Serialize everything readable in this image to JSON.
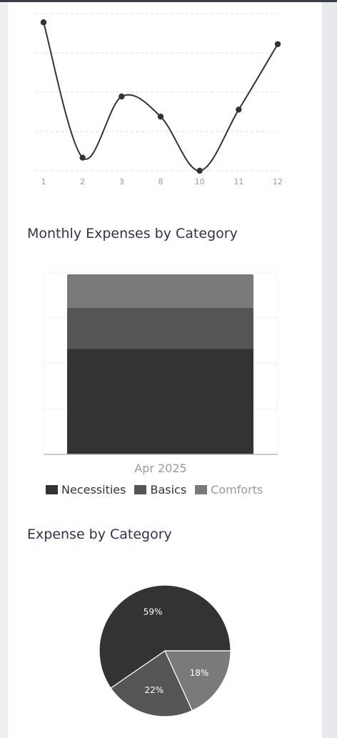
{
  "colors": {
    "necessities": "#333333",
    "basics": "#555555",
    "comforts": "#7a7a7a",
    "line": "#333333",
    "text_dark": "#333333",
    "text_muted": "#999999"
  },
  "sections": {
    "monthly_title": "Monthly Expenses by Category",
    "category_title": "Expense by Category"
  },
  "chart_data": [
    {
      "type": "line",
      "categories": [
        "1",
        "2",
        "3",
        "8",
        "10",
        "11",
        "12"
      ],
      "values": [
        19,
        3.5,
        10.5,
        8.2,
        2,
        9,
        16.5
      ],
      "ylim": [
        2,
        20
      ],
      "grid": true,
      "smooth": true
    },
    {
      "type": "bar",
      "stacked": true,
      "categories": [
        "Apr 2025"
      ],
      "series": [
        {
          "name": "Necessities",
          "values": [
            145
          ]
        },
        {
          "name": "Basics",
          "values": [
            56
          ]
        },
        {
          "name": "Comforts",
          "values": [
            46
          ]
        }
      ],
      "ylim": [
        0,
        250
      ],
      "legend": "bottom",
      "grid": true
    },
    {
      "type": "pie",
      "labels": [
        "Necessities",
        "Basics",
        "Comforts"
      ],
      "values": [
        59,
        22,
        18
      ],
      "data_labels": [
        "59%",
        "22%",
        "18%"
      ]
    }
  ]
}
